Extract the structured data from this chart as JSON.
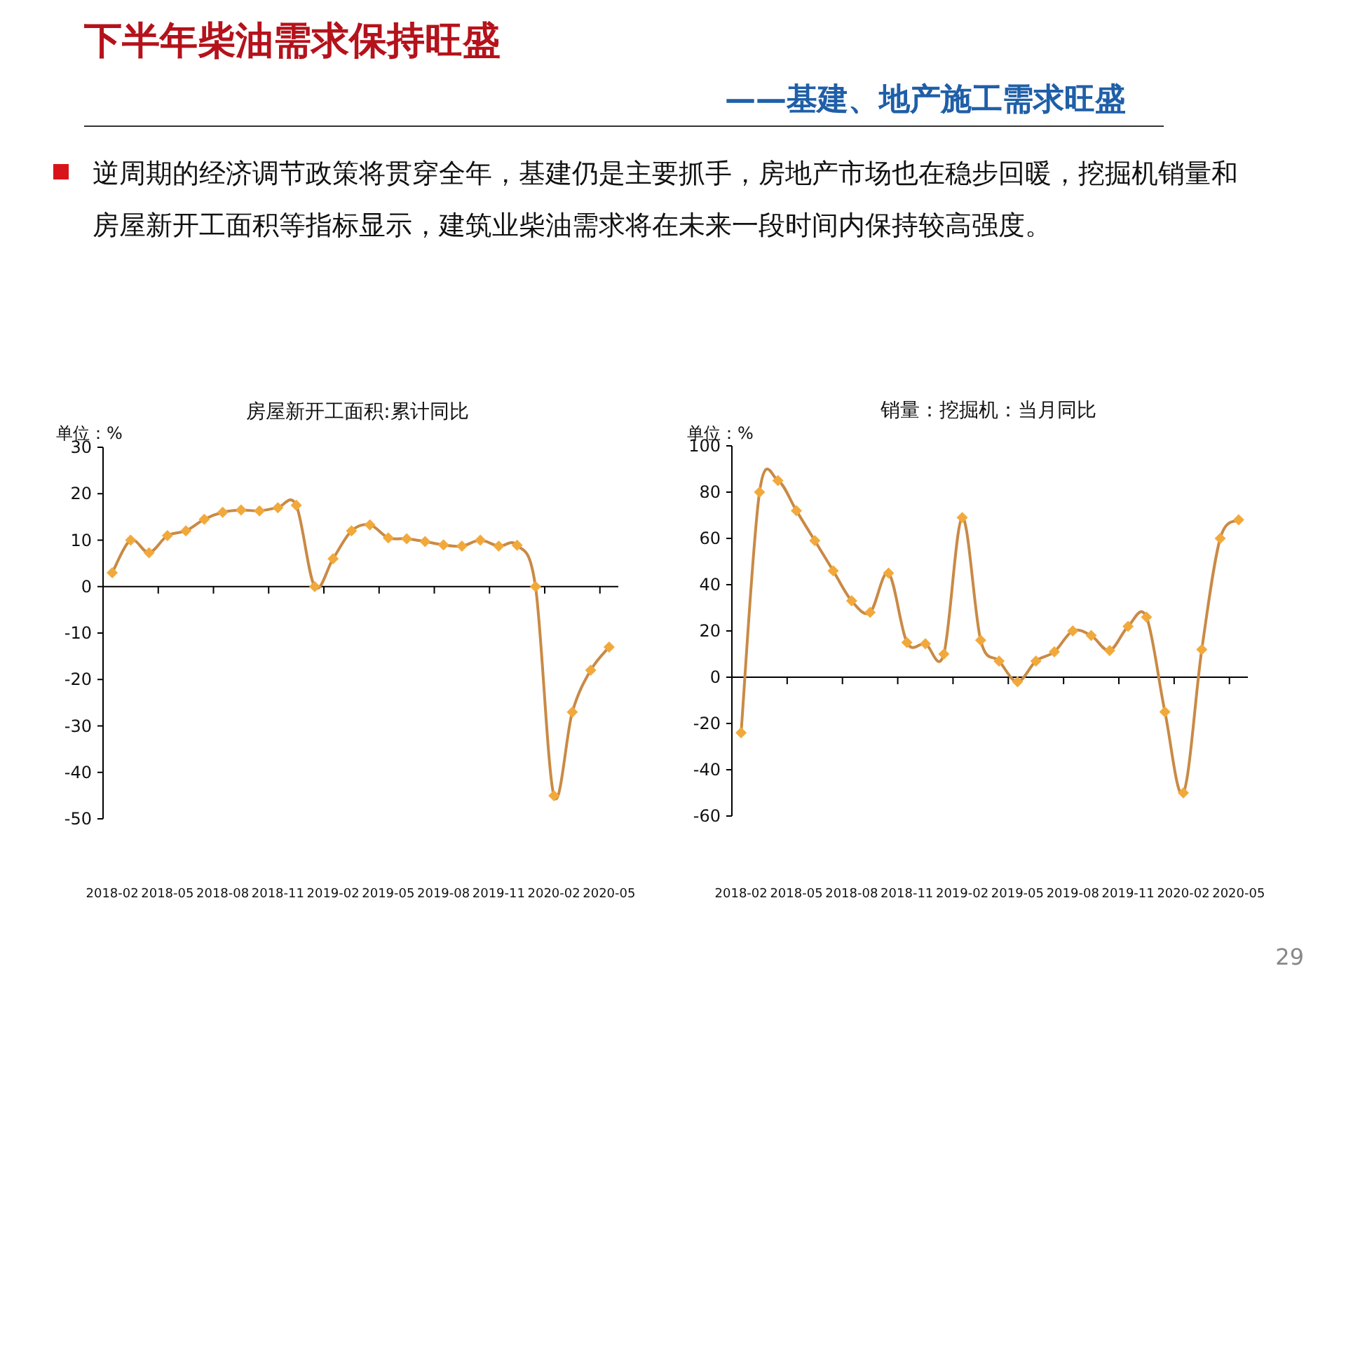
{
  "chart_data": [
    {
      "type": "other",
      "title": "下半年柴油需求保持旺盛",
      "subtitle": "——基建、地产施工需求旺盛",
      "annotations": [
        "逆周期的经济调节政策将贯穿全年，基建仍是主要抓手，房地产市场也在稳步回暖，挖掘机销量和房屋新开工面积等指标显示，建筑业柴油需求将在未来一段时间内保持较高强度。",
        "29"
      ]
    },
    {
      "type": "line",
      "title": "房屋新开工面积:累计同比",
      "ylabel": "单位：%",
      "categories": [
        "2018-02",
        null,
        null,
        "2018-05",
        null,
        null,
        "2018-08",
        null,
        null,
        "2018-11",
        null,
        null,
        "2019-02",
        null,
        null,
        "2019-05",
        null,
        null,
        "2019-08",
        null,
        null,
        "2019-11",
        null,
        null,
        "2020-02",
        null,
        null,
        "2020-05"
      ],
      "series": [
        {
          "color": "#c98a45",
          "values": [
            3,
            10,
            7.3,
            11,
            12,
            14.5,
            16,
            16.5,
            16.3,
            17,
            17.5,
            0,
            6,
            12,
            13.3,
            10.5,
            10.3,
            9.7,
            9,
            8.7,
            10,
            8.7,
            8.9,
            0,
            -45,
            -27,
            -18,
            -13
          ]
        }
      ],
      "ylim": [
        -50,
        30
      ],
      "yticks": [
        -50,
        -40,
        -30,
        -20,
        -10,
        0,
        10,
        20,
        30
      ],
      "marker": "diamond"
    },
    {
      "type": "line",
      "title": "销量：挖掘机：当月同比",
      "ylabel": "单位：%",
      "categories": [
        "2018-02",
        null,
        null,
        "2018-05",
        null,
        null,
        "2018-08",
        null,
        null,
        "2018-11",
        null,
        null,
        "2019-02",
        null,
        null,
        "2019-05",
        null,
        null,
        "2019-08",
        null,
        null,
        "2019-11",
        null,
        null,
        "2020-02",
        null,
        null,
        "2020-05"
      ],
      "series": [
        {
          "color": "#c98a45",
          "values": [
            -24,
            80,
            85,
            72,
            59,
            46,
            33,
            28,
            45,
            15,
            14.5,
            10,
            69,
            16,
            7,
            -2,
            7,
            11,
            20,
            18,
            11.5,
            22,
            26,
            -15,
            -50,
            12,
            60,
            68
          ]
        }
      ],
      "ylim": [
        -60,
        100
      ],
      "yticks": [
        -60,
        -40,
        -20,
        0,
        20,
        40,
        60,
        80,
        100
      ],
      "marker": "diamond"
    }
  ]
}
